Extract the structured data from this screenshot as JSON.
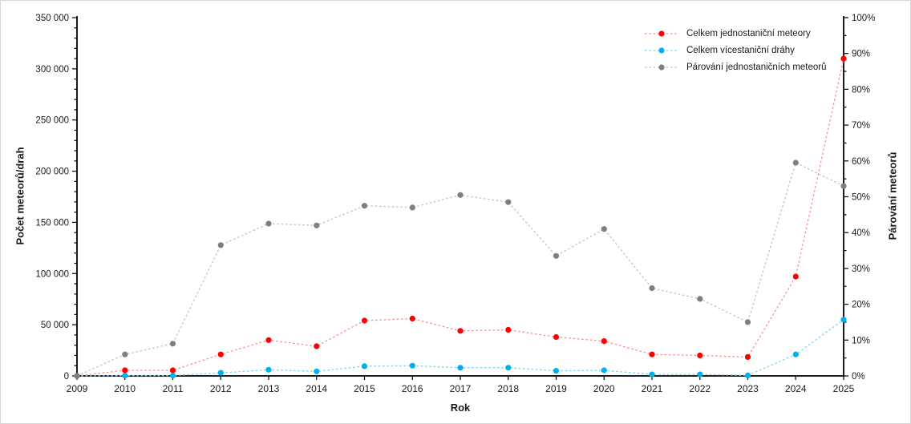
{
  "chart_data": {
    "type": "line",
    "title": "",
    "xlabel": "Rok",
    "ylabel_left": "Počet meteorů/drah",
    "ylabel_right": "Párování meteorů",
    "x": [
      2009,
      2010,
      2011,
      2012,
      2013,
      2014,
      2015,
      2016,
      2017,
      2018,
      2019,
      2020,
      2021,
      2022,
      2023,
      2024,
      2025
    ],
    "ylim_left": [
      0,
      350000
    ],
    "left_major_step": 50000,
    "left_minor_step": 10000,
    "ylim_right_percent": [
      0,
      100
    ],
    "right_major_step": 10,
    "right_minor_step": 5,
    "grid": false,
    "legend_position": "top-right-inside",
    "series": [
      {
        "name": "Celkem jednostaniční meteory",
        "axis": "left",
        "marker_color": "#fe0000",
        "line_color": "#ff8d8d",
        "values": [
          0,
          5500,
          5500,
          21000,
          35000,
          29000,
          54000,
          56000,
          44000,
          45000,
          38000,
          34000,
          21000,
          20000,
          18500,
          97000,
          310000
        ]
      },
      {
        "name": "Celkem vícestaniční dráhy",
        "axis": "left",
        "marker_color": "#00b0f0",
        "line_color": "#7dd2f6",
        "values": [
          0,
          300,
          300,
          3000,
          6000,
          4500,
          9500,
          10000,
          8000,
          8000,
          5000,
          5500,
          1500,
          1500,
          500,
          21000,
          55000
        ]
      },
      {
        "name": "Párování jednostaničních meteorů",
        "axis": "right",
        "marker_color": "#7f7f7f",
        "line_color": "#c3c3c3",
        "values": [
          0,
          6,
          9,
          36.5,
          42.5,
          42,
          47.5,
          47,
          50.5,
          48.5,
          33.5,
          41,
          24.5,
          21.5,
          15,
          59.5,
          53
        ]
      }
    ],
    "axis_color": "#000000",
    "tick_label_color": "#1a1a1a"
  }
}
